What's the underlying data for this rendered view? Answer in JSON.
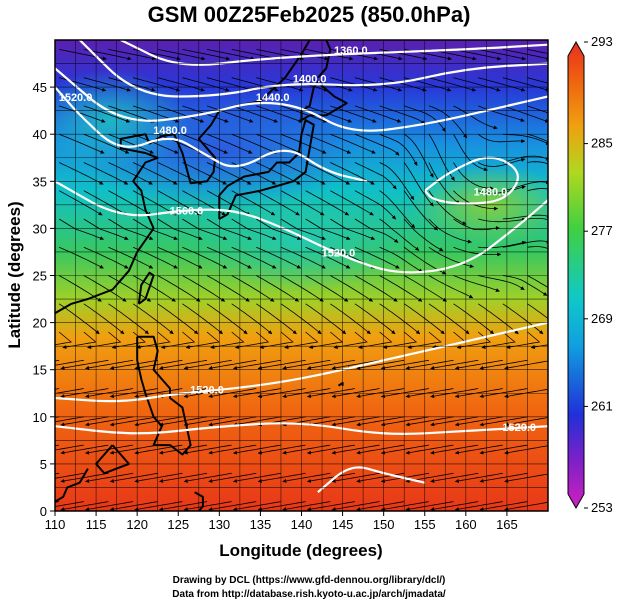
{
  "title": "GSM 00Z25Feb2025 (850.0hPa)",
  "credits": {
    "line1": "Drawing by DCL (https://www.gfd-dennou.org/library/dcl/)",
    "line2": "Data from http://database.rish.kyoto-u.ac.jp/arch/jmadata/"
  },
  "chart_data": {
    "type": "heatmap",
    "xlabel": "Longitude (degrees)",
    "ylabel": "Latitude  (degrees)",
    "xlim": [
      110,
      170
    ],
    "ylim": [
      0,
      50
    ],
    "x_ticks": [
      110,
      115,
      120,
      125,
      130,
      135,
      140,
      145,
      150,
      155,
      160,
      165
    ],
    "y_ticks": [
      0,
      5,
      10,
      15,
      20,
      25,
      30,
      35,
      40,
      45
    ],
    "grid": true,
    "colorbar": {
      "min": 253,
      "max": 293,
      "tick_labels": [
        "293",
        "285",
        "277",
        "269",
        "261",
        "253"
      ],
      "tick_values": [
        293,
        285,
        277,
        269,
        261,
        253
      ]
    },
    "contours": [
      {
        "label": "1360.0",
        "lon": 146,
        "lat": 48.5
      },
      {
        "label": "1400.0",
        "lon": 141,
        "lat": 45.5
      },
      {
        "label": "1440.0",
        "lon": 136.5,
        "lat": 43.5
      },
      {
        "label": "1480.0",
        "lon": 124,
        "lat": 40
      },
      {
        "label": "1520.0",
        "lon": 112.5,
        "lat": 43.5
      },
      {
        "label": "1560.0",
        "lon": 126,
        "lat": 31.5
      },
      {
        "label": "1520.0",
        "lon": 144.5,
        "lat": 27
      },
      {
        "label": "1480.0",
        "lon": 163,
        "lat": 33.5
      },
      {
        "label": "1520.0",
        "lon": 128.5,
        "lat": 12.5
      },
      {
        "label": "1520.0",
        "lon": 166.5,
        "lat": 8.5
      }
    ],
    "colors": {
      "cold": "#6a1fb0",
      "cool": "#2040e0",
      "mid": "#20c0c8",
      "warm": "#30c040",
      "hot": "#f07010",
      "hottest": "#e83010"
    }
  }
}
